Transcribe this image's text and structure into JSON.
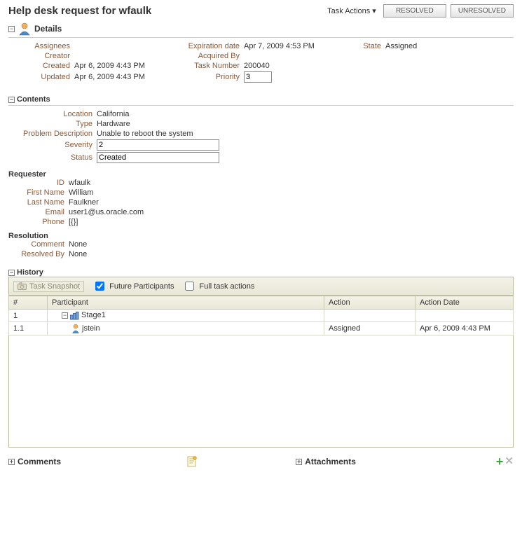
{
  "header": {
    "title": "Help desk request for wfaulk",
    "task_actions_label": "Task Actions",
    "resolved_btn": "RESOLVED",
    "unresolved_btn": "UNRESOLVED"
  },
  "details": {
    "section_label": "Details",
    "labels": {
      "assignees": "Assignees",
      "creator": "Creator",
      "created": "Created",
      "updated": "Updated",
      "expiration": "Expiration date",
      "acquired_by": "Acquired By",
      "task_number": "Task Number",
      "priority": "Priority",
      "state": "State"
    },
    "values": {
      "assignees": "",
      "creator": "",
      "created": "Apr 6, 2009 4:43 PM",
      "updated": "Apr 6, 2009 4:43 PM",
      "expiration": "Apr 7, 2009 4:53 PM",
      "acquired_by": "",
      "task_number": "200040",
      "priority": "3",
      "state": "Assigned"
    }
  },
  "contents": {
    "section_label": "Contents",
    "labels": {
      "location": "Location",
      "type": "Type",
      "problem_description": "Problem Description",
      "severity": "Severity",
      "status": "Status"
    },
    "values": {
      "location": "California",
      "type": "Hardware",
      "problem_description": "Unable to reboot the system",
      "severity": "2",
      "status": "Created"
    },
    "requester": {
      "section_label": "Requester",
      "labels": {
        "id": "ID",
        "first_name": "First Name",
        "last_name": "Last Name",
        "email": "Email",
        "phone": "Phone"
      },
      "values": {
        "id": "wfaulk",
        "first_name": "William",
        "last_name": "Faulkner",
        "email": "user1@us.oracle.com",
        "phone": "[{}]"
      }
    },
    "resolution": {
      "section_label": "Resolution",
      "labels": {
        "comment": "Comment",
        "resolved_by": "Resolved By"
      },
      "values": {
        "comment": "None",
        "resolved_by": "None"
      }
    }
  },
  "history": {
    "section_label": "History",
    "toolbar": {
      "snapshot": "Task Snapshot",
      "future_participants": "Future Participants",
      "full_task_actions": "Full task actions"
    },
    "columns": {
      "num": "#",
      "participant": "Participant",
      "action": "Action",
      "action_date": "Action Date"
    },
    "rows": [
      {
        "num": "1",
        "indent": 1,
        "icon": "stage",
        "participant": "Stage1",
        "action": "",
        "action_date": ""
      },
      {
        "num": "1.1",
        "indent": 2,
        "icon": "user",
        "participant": "jstein",
        "action": "Assigned",
        "action_date": "Apr 6, 2009 4:43 PM"
      }
    ]
  },
  "footer": {
    "comments_label": "Comments",
    "attachments_label": "Attachments"
  }
}
